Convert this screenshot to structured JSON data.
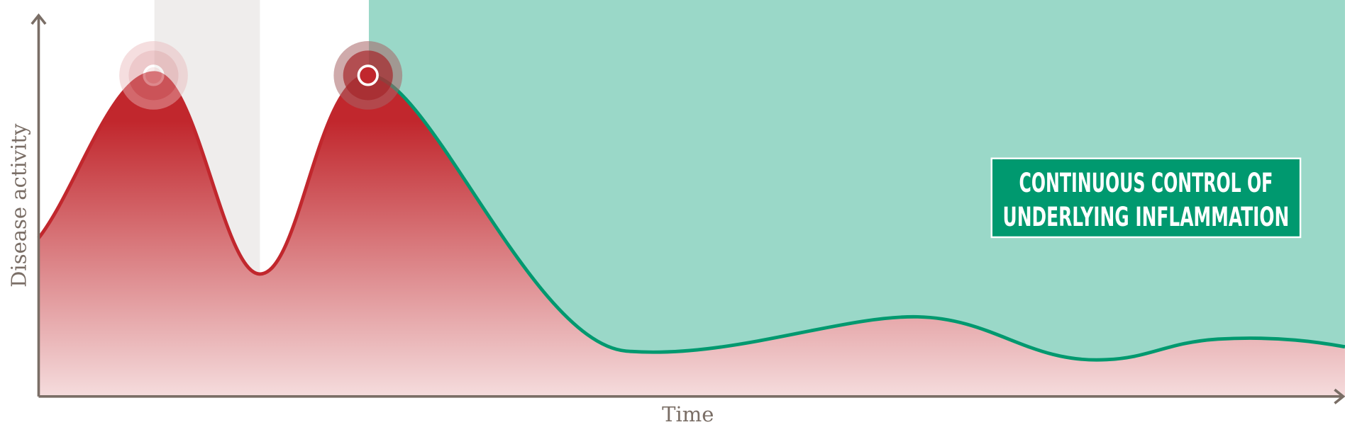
{
  "axes": {
    "y_label": "Disease activity",
    "x_label": "Time"
  },
  "callout": {
    "lines": [
      "CONTINUOUS CONTROL OF",
      "UNDERLYING INFLAMMATION"
    ]
  }
}
